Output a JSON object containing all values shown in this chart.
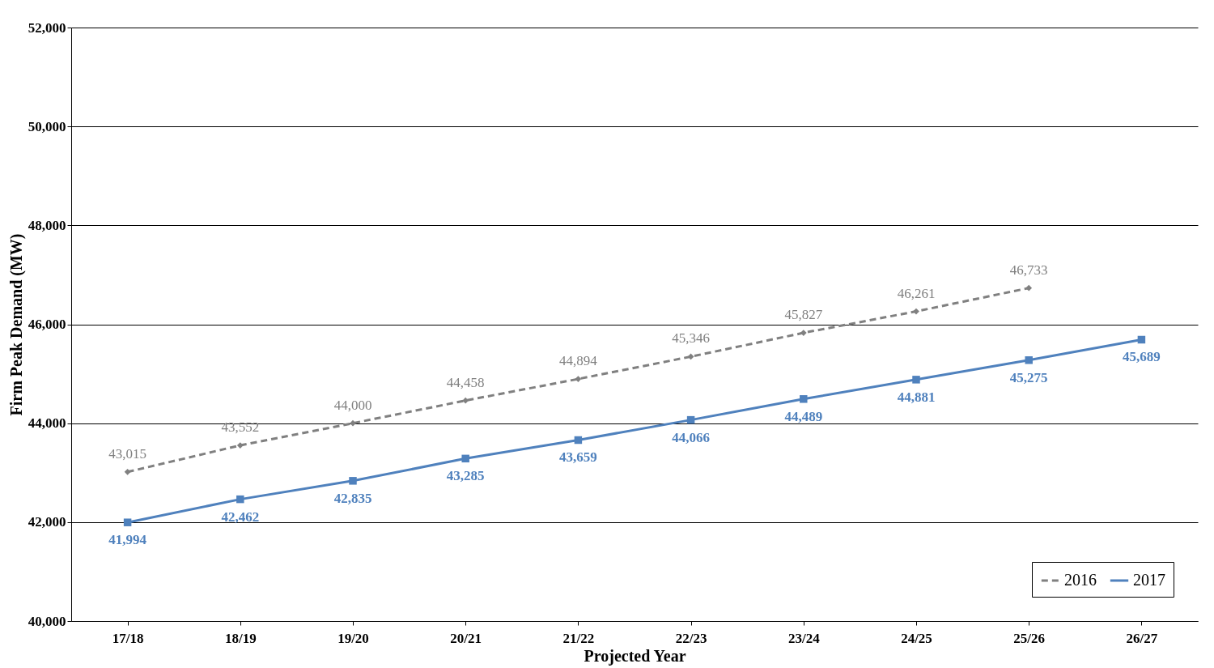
{
  "chart_data": {
    "type": "line",
    "xlabel": "Projected Year",
    "ylabel": "Firm Peak Demand (MW)",
    "categories": [
      "17/18",
      "18/19",
      "19/20",
      "20/21",
      "21/22",
      "22/23",
      "23/24",
      "24/25",
      "25/26",
      "26/27"
    ],
    "series": [
      {
        "name": "2016",
        "color": "#808080",
        "marker": "diamond",
        "line_style": "dashed",
        "values": [
          43015,
          43552,
          44000,
          44458,
          44894,
          45346,
          45827,
          46261,
          46733,
          null
        ],
        "value_labels": [
          "43,015",
          "43,552",
          "44,000",
          "44,458",
          "44,894",
          "45,346",
          "45,827",
          "46,261",
          "46,733",
          null
        ]
      },
      {
        "name": "2017",
        "color": "#4f81bd",
        "marker": "square",
        "line_style": "solid",
        "values": [
          41994,
          42462,
          42835,
          43285,
          43659,
          44066,
          44489,
          44881,
          45275,
          45689
        ],
        "value_labels": [
          "41,994",
          "42,462",
          "42,835",
          "43,285",
          "43,659",
          "44,066",
          "44,489",
          "44,881",
          "45,275",
          "45,689"
        ]
      }
    ],
    "ylim": [
      40000,
      52000
    ],
    "yticks": [
      {
        "value": 40000,
        "label": "40,000"
      },
      {
        "value": 42000,
        "label": "42,000"
      },
      {
        "value": 44000,
        "label": "44,000"
      },
      {
        "value": 46000,
        "label": "46,000"
      },
      {
        "value": 48000,
        "label": "48,000"
      },
      {
        "value": 50000,
        "label": "50,000"
      },
      {
        "value": 52000,
        "label": "52,000"
      }
    ],
    "grid": "y",
    "legend": "bottom right"
  }
}
